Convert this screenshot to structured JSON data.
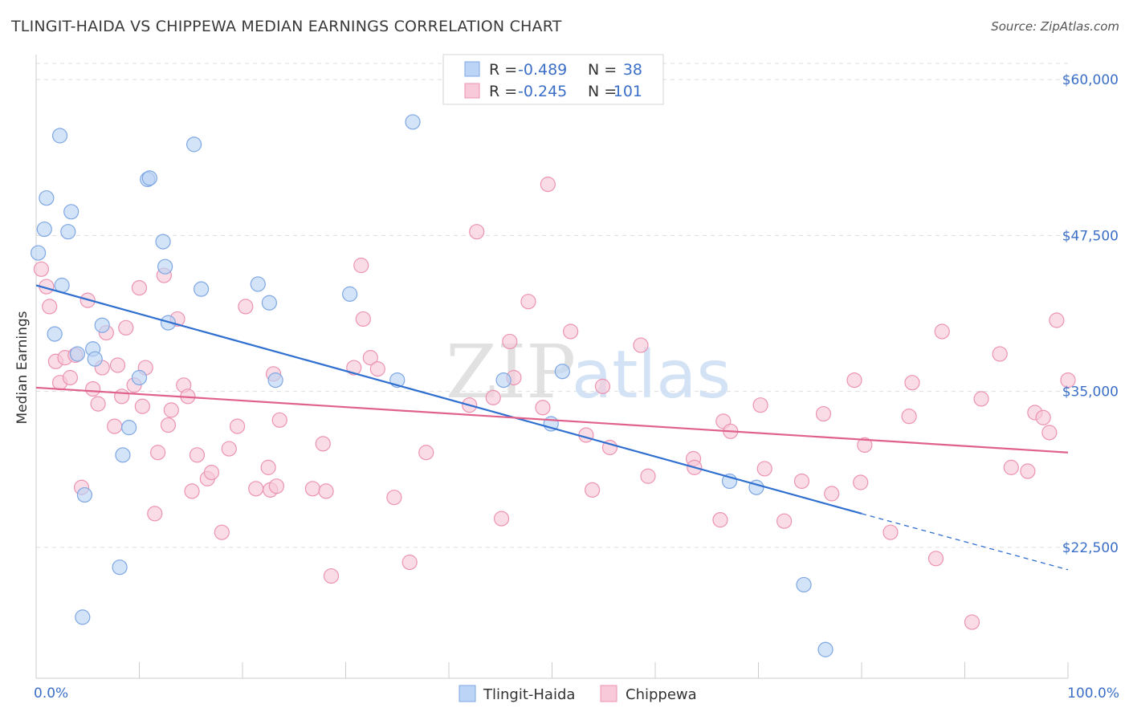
{
  "title": "TLINGIT-HAIDA VS CHIPPEWA MEDIAN EARNINGS CORRELATION CHART",
  "source": "Source: ZipAtlas.com",
  "watermark": {
    "zip": "ZIP",
    "atlas": "atlas"
  },
  "colors": {
    "tlingit_fill": "#bcd4f5",
    "tlingit_stroke": "#7ea7e3",
    "tlingit_line": "#2f6fcf",
    "chippewa_fill": "#f8c9d8",
    "chippewa_stroke": "#ec93b2",
    "chippewa_line": "#e0628b",
    "axis_label": "#3b6fc7",
    "grid": "#dddddd"
  },
  "legend": {
    "rows": [
      {
        "r_label": "R = ",
        "r_value": "-0.489",
        "n_label": "N = ",
        "n_value": "38"
      },
      {
        "r_label": "R = ",
        "r_value": "-0.245",
        "n_label": "N = ",
        "n_value": "101"
      }
    ]
  },
  "bottom_legend": [
    "Tlingit-Haida",
    "Chippewa"
  ],
  "chart_data": {
    "type": "scatter",
    "ylabel": "Median Earnings",
    "xlim": [
      0,
      100
    ],
    "ylim": [
      12000,
      62000
    ],
    "x_tick_labels": [
      "0.0%",
      "100.0%"
    ],
    "y_ticks": [
      22500,
      35000,
      47500,
      60000
    ],
    "y_tick_labels": [
      "$22,500",
      "$35,000",
      "$47,500",
      "$60,000"
    ],
    "grid": true,
    "legend_position": "top-center",
    "series": [
      {
        "name": "Tlingit-Haida",
        "R": -0.489,
        "N": 38,
        "trend": {
          "x0": 0,
          "y0": 43500,
          "x1": 80,
          "y1": 25200,
          "dash_x1": 100,
          "dash_y1": 20700
        },
        "points": [
          [
            0.2,
            46100
          ],
          [
            0.8,
            48000
          ],
          [
            1.0,
            50500
          ],
          [
            2.3,
            55500
          ],
          [
            3.1,
            47800
          ],
          [
            3.4,
            49400
          ],
          [
            2.5,
            43500
          ],
          [
            1.8,
            39600
          ],
          [
            4.0,
            38000
          ],
          [
            5.5,
            38400
          ],
          [
            5.7,
            37600
          ],
          [
            6.4,
            40300
          ],
          [
            10.8,
            52000
          ],
          [
            11.0,
            52100
          ],
          [
            12.3,
            47000
          ],
          [
            12.5,
            45000
          ],
          [
            12.8,
            40500
          ],
          [
            10.0,
            36100
          ],
          [
            15.3,
            54800
          ],
          [
            16.0,
            43200
          ],
          [
            21.5,
            43600
          ],
          [
            22.6,
            42100
          ],
          [
            23.2,
            35900
          ],
          [
            30.4,
            42800
          ],
          [
            36.5,
            56600
          ],
          [
            35.0,
            35900
          ],
          [
            8.4,
            29900
          ],
          [
            9.0,
            32100
          ],
          [
            4.7,
            26700
          ],
          [
            8.1,
            20900
          ],
          [
            4.5,
            16900
          ],
          [
            45.3,
            35900
          ],
          [
            49.9,
            32400
          ],
          [
            51.0,
            36600
          ],
          [
            67.2,
            27800
          ],
          [
            69.8,
            27300
          ],
          [
            74.4,
            19500
          ],
          [
            76.5,
            14300
          ]
        ]
      },
      {
        "name": "Chippewa",
        "R": -0.245,
        "N": 101,
        "trend": {
          "x0": 0,
          "y0": 35300,
          "x1": 100,
          "y1": 30100
        },
        "points": [
          [
            0.5,
            44800
          ],
          [
            1.0,
            43400
          ],
          [
            1.3,
            41800
          ],
          [
            1.9,
            37400
          ],
          [
            2.3,
            35700
          ],
          [
            2.8,
            37700
          ],
          [
            3.3,
            36100
          ],
          [
            3.8,
            37900
          ],
          [
            4.4,
            27300
          ],
          [
            5.0,
            42300
          ],
          [
            5.5,
            35200
          ],
          [
            6.0,
            34000
          ],
          [
            6.4,
            36900
          ],
          [
            6.8,
            39700
          ],
          [
            7.6,
            32200
          ],
          [
            7.9,
            37100
          ],
          [
            8.3,
            34600
          ],
          [
            8.7,
            40100
          ],
          [
            9.5,
            35500
          ],
          [
            10.0,
            43300
          ],
          [
            10.3,
            33800
          ],
          [
            10.6,
            36900
          ],
          [
            11.5,
            25200
          ],
          [
            11.8,
            30100
          ],
          [
            12.4,
            44300
          ],
          [
            12.8,
            32300
          ],
          [
            13.1,
            33500
          ],
          [
            13.7,
            40800
          ],
          [
            14.3,
            35500
          ],
          [
            14.7,
            34600
          ],
          [
            15.1,
            27000
          ],
          [
            15.6,
            29900
          ],
          [
            16.6,
            28000
          ],
          [
            17.0,
            28500
          ],
          [
            18.0,
            23700
          ],
          [
            18.7,
            30400
          ],
          [
            19.5,
            32200
          ],
          [
            20.3,
            41800
          ],
          [
            21.3,
            27200
          ],
          [
            22.5,
            28900
          ],
          [
            22.7,
            27100
          ],
          [
            23.0,
            36400
          ],
          [
            23.3,
            27400
          ],
          [
            23.6,
            32700
          ],
          [
            26.8,
            27200
          ],
          [
            27.8,
            30800
          ],
          [
            28.1,
            27000
          ],
          [
            28.6,
            20200
          ],
          [
            30.8,
            36900
          ],
          [
            31.5,
            45100
          ],
          [
            31.7,
            40800
          ],
          [
            32.4,
            37700
          ],
          [
            33.1,
            36800
          ],
          [
            34.7,
            26500
          ],
          [
            36.2,
            21300
          ],
          [
            37.8,
            30100
          ],
          [
            42.7,
            47800
          ],
          [
            42.0,
            33900
          ],
          [
            44.3,
            34500
          ],
          [
            45.1,
            24800
          ],
          [
            45.9,
            39000
          ],
          [
            46.3,
            36100
          ],
          [
            47.7,
            42200
          ],
          [
            49.1,
            33700
          ],
          [
            49.6,
            51600
          ],
          [
            51.8,
            39800
          ],
          [
            53.3,
            31500
          ],
          [
            53.9,
            27100
          ],
          [
            54.9,
            35400
          ],
          [
            55.6,
            30500
          ],
          [
            58.6,
            38700
          ],
          [
            59.3,
            28200
          ],
          [
            63.7,
            29600
          ],
          [
            63.8,
            28900
          ],
          [
            66.3,
            24700
          ],
          [
            66.6,
            32600
          ],
          [
            67.3,
            31800
          ],
          [
            70.2,
            33900
          ],
          [
            70.6,
            28800
          ],
          [
            72.5,
            24600
          ],
          [
            74.2,
            27800
          ],
          [
            76.3,
            33200
          ],
          [
            77.1,
            26800
          ],
          [
            79.3,
            35900
          ],
          [
            79.9,
            27700
          ],
          [
            80.3,
            30700
          ],
          [
            82.8,
            23700
          ],
          [
            84.6,
            33000
          ],
          [
            84.9,
            35700
          ],
          [
            87.2,
            21600
          ],
          [
            87.8,
            39800
          ],
          [
            90.7,
            16500
          ],
          [
            91.6,
            34400
          ],
          [
            93.4,
            38000
          ],
          [
            94.5,
            28900
          ],
          [
            96.1,
            28600
          ],
          [
            96.8,
            33300
          ],
          [
            97.6,
            32900
          ],
          [
            98.2,
            31700
          ],
          [
            98.9,
            40700
          ],
          [
            100.0,
            35900
          ]
        ]
      }
    ]
  }
}
